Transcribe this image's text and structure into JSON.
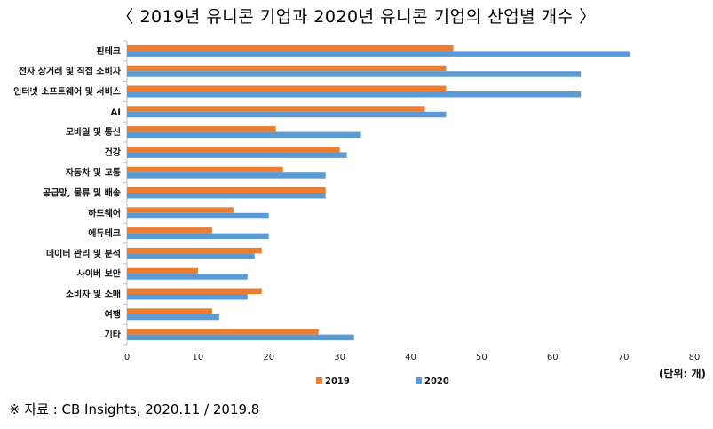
{
  "page": {
    "title": "〈 2019년 유니콘 기업과 2020년 유니콘 기업의 산업별 개수 〉",
    "source_note": "※ 자료 : CB Insights, 2020.11 / 2019.8"
  },
  "colors": {
    "2019": "#ED7D31",
    "2020": "#5B9BD5",
    "axis": "#bfbfbf"
  },
  "chart_data": {
    "type": "bar",
    "orientation": "horizontal",
    "categories": [
      "핀테크",
      "전자 상거래 및 직접 소비자",
      "인터넷 소프트웨어 및 서비스",
      "AI",
      "모바일 및 통신",
      "건강",
      "자동차 및 교통",
      "공급망, 물류 및 배송",
      "하드웨어",
      "에듀테크",
      "데이터 관리 및 분석",
      "사이버 보안",
      "소비자 및 소매",
      "여행",
      "기타"
    ],
    "series": [
      {
        "name": "2019",
        "values": [
          46,
          45,
          45,
          42,
          21,
          30,
          22,
          28,
          15,
          12,
          19,
          10,
          19,
          12,
          27
        ]
      },
      {
        "name": "2020",
        "values": [
          71,
          64,
          64,
          45,
          33,
          31,
          28,
          28,
          20,
          20,
          18,
          17,
          17,
          13,
          32
        ]
      }
    ],
    "xlim": [
      0,
      80
    ],
    "xticks": [
      0,
      10,
      20,
      30,
      40,
      50,
      60,
      70,
      80
    ],
    "unit_label": "(단위: 개)",
    "legend_position": "bottom",
    "grid": false
  }
}
